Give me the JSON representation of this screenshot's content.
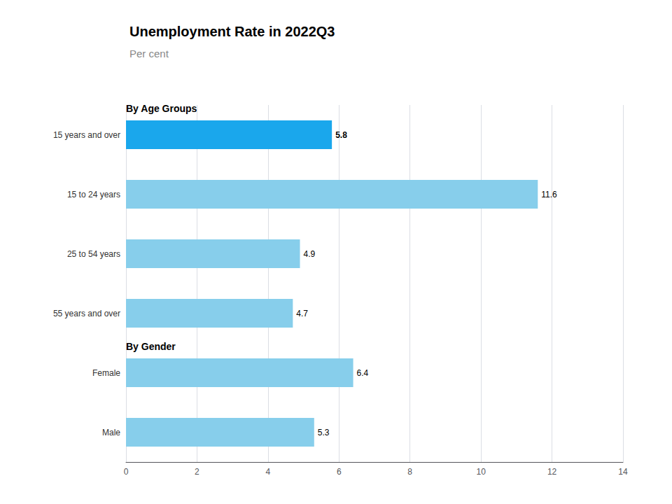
{
  "chart_data": {
    "type": "bar",
    "orientation": "horizontal",
    "title": "Unemployment Rate in 2022Q3",
    "subtitle": "Per cent",
    "annotations": [
      "By Age Groups",
      "By Gender"
    ],
    "categories": [
      "15 years and over",
      "15 to 24 years",
      "25 to 54 years",
      "55 years and over",
      "Female",
      "Male"
    ],
    "values": [
      5.8,
      11.6,
      4.9,
      4.7,
      6.4,
      5.3
    ],
    "colors": [
      "#1AA7EC",
      "#87CEEB",
      "#87CEEB",
      "#87CEEB",
      "#87CEEB",
      "#87CEEB"
    ],
    "xlim": [
      0,
      14
    ],
    "xticks": [
      0,
      2,
      4,
      6,
      8,
      10,
      12,
      14
    ],
    "grid": true,
    "data_labels": true
  }
}
